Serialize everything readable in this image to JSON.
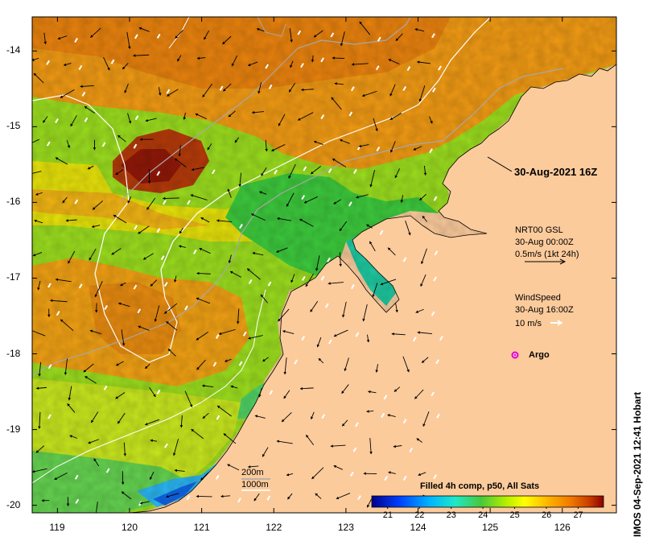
{
  "map": {
    "lon_ticks": [
      "119",
      "120",
      "121",
      "122",
      "123",
      "124",
      "125",
      "126"
    ],
    "lat_ticks": [
      "-14",
      "-15",
      "-16",
      "-17",
      "-18",
      "-19",
      "-20"
    ],
    "lon_range": [
      118.65,
      126.75
    ],
    "lat_range": [
      -20.1,
      -13.55
    ]
  },
  "annotations": {
    "timestamp": "30-Aug-2021 16Z",
    "current_title": "NRT00 GSL",
    "current_time": "30-Aug 00:00Z",
    "current_scale": "0.5m/s (1kt 24h)",
    "wind_title": "WindSpeed",
    "wind_time": "30-Aug 16:00Z",
    "wind_scale": "10 m/s",
    "argo_label": "Argo",
    "contour_200": "200m",
    "contour_1000": "1000m",
    "credit": "IMOS 04-Sep-2021 12:41 Hobart"
  },
  "colorbar": {
    "title": "Filled 4h comp, p50, All Sats",
    "ticks": [
      "21",
      "22",
      "23",
      "24",
      "25",
      "26",
      "27"
    ],
    "range": [
      20.5,
      27.8
    ]
  },
  "colors": {
    "land": "#fccb9c",
    "argo": "#e000e0",
    "wind_arrow": "#ffffff",
    "current_arrow": "#000000",
    "contour_200": "#a8a8a8",
    "contour_1000": "#ffffff"
  }
}
